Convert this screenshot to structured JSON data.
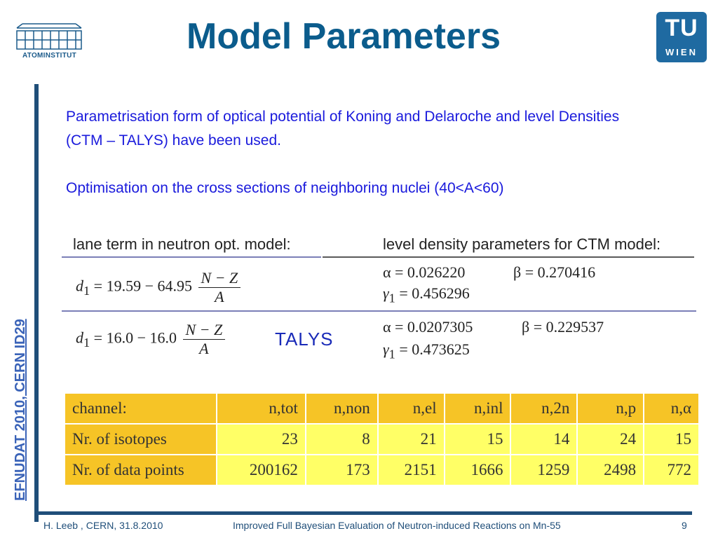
{
  "header": {
    "institute_logo_text": "ATOMINSTITUT",
    "title": "Model Parameters",
    "tu_logo": {
      "top": "TU",
      "bottom": "WIEN"
    }
  },
  "sidebar_vertical_text": "EFNUDAT 2010, CERN    ID29",
  "body": {
    "paragraph1": "Parametrisation form of optical potential of Koning and Delaroche and level Densities (CTM – TALYS) have been used.",
    "paragraph2": "Optimisation on the cross sections of neighboring nuclei (40<A<60)"
  },
  "parameters": {
    "left_header": "lane term in neutron opt. model:",
    "right_header": "level density parameters for CTM model:",
    "row1": {
      "d1_lhs": "d",
      "d1_rhs": "= 19.59 − 64.95",
      "numerator": "N − Z",
      "denominator": "A",
      "alpha": "α = 0.026220",
      "beta": "β = 0.270416",
      "gamma": "γ",
      "gamma_rhs": "= 0.456296"
    },
    "row2": {
      "d1_lhs": "d",
      "d1_rhs": "= 16.0 − 16.0",
      "numerator": "N − Z",
      "denominator": "A",
      "tag": "TALYS",
      "alpha": "α = 0.0207305",
      "beta": "β = 0.229537",
      "gamma": "γ",
      "gamma_rhs": "= 0.473625"
    },
    "subscript": "1"
  },
  "table": {
    "header": [
      "channel:",
      "n,tot",
      "n,non",
      "n,el",
      "n,inl",
      "n,2n",
      "n,p",
      "n,α"
    ],
    "rows": [
      [
        "Nr. of isotopes",
        "23",
        "8",
        "21",
        "15",
        "14",
        "24",
        "15"
      ],
      [
        "Nr. of data points",
        "200162",
        "173",
        "2151",
        "1666",
        "1259",
        "2498",
        "772"
      ]
    ]
  },
  "footer": {
    "left": "H. Leeb , CERN, 31.8.2010",
    "center": "Improved Full Bayesian Evaluation of Neutron-induced Reactions on Mn-55",
    "page_number": "9"
  },
  "colors": {
    "title": "#0b5c8c",
    "accent_bar": "#1f4e79",
    "body_text": "#1a1adc",
    "table_header": "#f6c426",
    "table_cell": "#ffff66"
  }
}
